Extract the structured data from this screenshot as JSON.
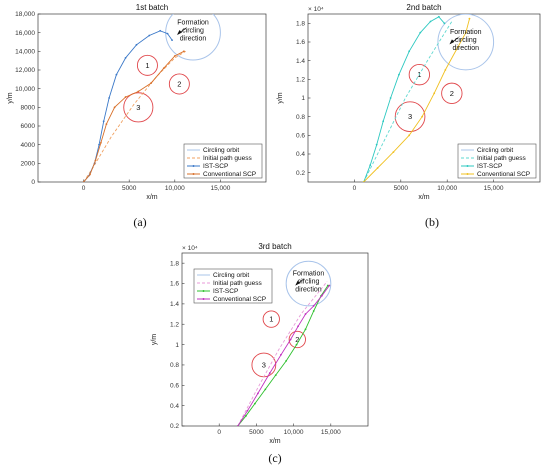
{
  "legend_labels": [
    "Circling orbit",
    "Initial path guess",
    "IST-SCP",
    "Conventional SCP"
  ],
  "colors": {
    "circle": "#a9c4ea",
    "obstacle": "#e0464a",
    "guess_a": "#f0a060",
    "ist_a": "#3a78c8",
    "conv_a": "#d8702a",
    "guess_b": "#5ed8d0",
    "ist_b": "#2cc8c0",
    "conv_b": "#f0c020",
    "guess_c": "#e89ad8",
    "ist_c": "#2ec02e",
    "conv_c": "#c030c0"
  },
  "annotation_lines": [
    "Formation",
    "circling",
    "direction"
  ],
  "chart_data": [
    {
      "type": "line",
      "caption": "(a)",
      "title": "1st batch",
      "xlabel": "x/m",
      "ylabel": "y/m",
      "xlim": [
        -5000,
        20000
      ],
      "ylim": [
        0,
        18000
      ],
      "xticks": [
        0,
        5000,
        10000,
        15000
      ],
      "xtick_labels": [
        "0",
        "5000",
        "10,000",
        "15,000"
      ],
      "yticks": [
        0,
        2000,
        4000,
        6000,
        8000,
        10000,
        12000,
        14000,
        16000,
        18000
      ],
      "ytick_labels": [
        "0",
        "2000",
        "4000",
        "6000",
        "8000",
        "10,000",
        "12,000",
        "14,000",
        "16,000",
        "18,000"
      ],
      "exponent": "",
      "legend_position": "lower-right",
      "circling_orbit": {
        "cx": 12000,
        "cy": 16000,
        "r": 3000
      },
      "obstacles": [
        {
          "label": "1",
          "cx": 7000,
          "cy": 12500,
          "r": 1100
        },
        {
          "label": "2",
          "cx": 10500,
          "cy": 10500,
          "r": 1100
        },
        {
          "label": "3",
          "cx": 6000,
          "cy": 8000,
          "r": 1600
        }
      ],
      "series": [
        {
          "name": "Initial path guess",
          "color_key": "guess_a",
          "dash": true,
          "marker": false,
          "x": [
            0,
            1000,
            3000,
            5500,
            8000,
            10000,
            11200
          ],
          "y": [
            0,
            1500,
            4800,
            8300,
            11300,
            13300,
            14000
          ]
        },
        {
          "name": "IST-SCP",
          "color_key": "ist_a",
          "dash": false,
          "marker": true,
          "x": [
            0,
            600,
            1200,
            1700,
            2200,
            2800,
            3600,
            4600,
            5800,
            7200,
            8400,
            9200,
            9700
          ],
          "y": [
            0,
            700,
            2000,
            4000,
            6500,
            9000,
            11500,
            13300,
            14700,
            15700,
            16200,
            15900,
            15200
          ]
        },
        {
          "name": "Conventional SCP",
          "color_key": "conv_a",
          "dash": false,
          "marker": true,
          "x": [
            0,
            700,
            1300,
            1900,
            2500,
            3400,
            4600,
            6000,
            7400,
            8800,
            10000,
            11000
          ],
          "y": [
            0,
            800,
            2300,
            4200,
            6200,
            8000,
            9100,
            9700,
            10600,
            12200,
            13500,
            14000
          ]
        }
      ]
    },
    {
      "type": "line",
      "caption": "(b)",
      "title": "2nd batch",
      "xlabel": "x/m",
      "ylabel": "y/m",
      "xlim": [
        -5000,
        20000
      ],
      "ylim": [
        0.1,
        1.9
      ],
      "xticks": [
        0,
        5000,
        10000,
        15000
      ],
      "xtick_labels": [
        "0",
        "5000",
        "10,000",
        "15,000"
      ],
      "yticks": [
        0.2,
        0.4,
        0.6,
        0.8,
        1.0,
        1.2,
        1.4,
        1.6,
        1.8
      ],
      "ytick_labels": [
        "0.2",
        "0.4",
        "0.6",
        "0.8",
        "1",
        "1.2",
        "1.4",
        "1.6",
        "1.8"
      ],
      "exponent": "× 10⁴",
      "legend_position": "lower-right",
      "circling_orbit": {
        "cx": 12000,
        "cy": 1.6,
        "r": 3000
      },
      "obstacles": [
        {
          "label": "1",
          "cx": 7000,
          "cy": 1.25,
          "r": 1100
        },
        {
          "label": "2",
          "cx": 10500,
          "cy": 1.05,
          "r": 1100
        },
        {
          "label": "3",
          "cx": 6000,
          "cy": 0.8,
          "r": 1600
        }
      ],
      "series": [
        {
          "name": "Initial path guess",
          "color_key": "guess_b",
          "dash": true,
          "marker": false,
          "x": [
            1000,
            3000,
            5500,
            8000,
            10500
          ],
          "y": [
            0.1,
            0.5,
            1.0,
            1.42,
            1.82
          ]
        },
        {
          "name": "IST-SCP",
          "color_key": "ist_b",
          "dash": false,
          "marker": true,
          "x": [
            1000,
            1700,
            2400,
            3100,
            3900,
            4800,
            5900,
            7100,
            8200,
            9100,
            9700
          ],
          "y": [
            0.1,
            0.28,
            0.5,
            0.75,
            1.0,
            1.25,
            1.5,
            1.7,
            1.82,
            1.87,
            1.8
          ]
        },
        {
          "name": "Conventional SCP",
          "color_key": "conv_b",
          "dash": false,
          "marker": true,
          "x": [
            1000,
            2500,
            4200,
            5900,
            7300,
            8600,
            9800,
            11000,
            12000,
            12400
          ],
          "y": [
            0.1,
            0.25,
            0.42,
            0.6,
            0.8,
            1.05,
            1.3,
            1.52,
            1.7,
            1.85
          ]
        }
      ]
    },
    {
      "type": "line",
      "caption": "(c)",
      "title": "3rd batch",
      "xlabel": "x/m",
      "ylabel": "y/m",
      "xlim": [
        -5000,
        20000
      ],
      "ylim": [
        0.2,
        1.9
      ],
      "xticks": [
        0,
        5000,
        10000,
        15000
      ],
      "xtick_labels": [
        "0",
        "5000",
        "10,000",
        "15,000"
      ],
      "yticks": [
        0.2,
        0.4,
        0.6,
        0.8,
        1.0,
        1.2,
        1.4,
        1.6,
        1.8
      ],
      "ytick_labels": [
        "0.2",
        "0.4",
        "0.6",
        "0.8",
        "1",
        "1.2",
        "1.4",
        "1.6",
        "1.8"
      ],
      "exponent": "× 10⁴",
      "legend_position": "upper-left",
      "circling_orbit": {
        "cx": 12000,
        "cy": 1.6,
        "r": 3000
      },
      "obstacles": [
        {
          "label": "1",
          "cx": 7000,
          "cy": 1.25,
          "r": 1100
        },
        {
          "label": "2",
          "cx": 10500,
          "cy": 1.05,
          "r": 1100
        },
        {
          "label": "3",
          "cx": 6000,
          "cy": 0.8,
          "r": 1600
        }
      ],
      "series": [
        {
          "name": "Initial path guess",
          "color_key": "guess_c",
          "dash": true,
          "marker": false,
          "x": [
            2500,
            5000,
            8000,
            11000,
            14500
          ],
          "y": [
            0.2,
            0.55,
            0.95,
            1.3,
            1.62
          ]
        },
        {
          "name": "IST-SCP",
          "color_key": "ist_c",
          "dash": false,
          "marker": true,
          "x": [
            2500,
            3600,
            4800,
            6200,
            7600,
            9000,
            10400,
            11600,
            12700,
            13700,
            14600
          ],
          "y": [
            0.2,
            0.3,
            0.42,
            0.56,
            0.7,
            0.84,
            1.0,
            1.15,
            1.33,
            1.48,
            1.58
          ]
        },
        {
          "name": "Conventional SCP",
          "color_key": "conv_c",
          "dash": false,
          "marker": true,
          "x": [
            2500,
            3800,
            5200,
            6800,
            8300,
            9600,
            10600,
            11600,
            12700,
            13800,
            14800
          ],
          "y": [
            0.2,
            0.35,
            0.52,
            0.72,
            0.9,
            1.05,
            1.18,
            1.3,
            1.38,
            1.48,
            1.58
          ]
        }
      ]
    }
  ]
}
